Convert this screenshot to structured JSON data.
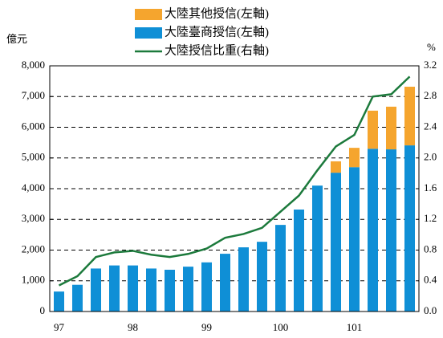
{
  "chart_data": {
    "type": "combo",
    "y_label": "億元",
    "y2_label": "%",
    "categories": [
      "97",
      null,
      null,
      null,
      "98",
      null,
      null,
      null,
      "99",
      null,
      null,
      null,
      "100",
      null,
      null,
      null,
      "101",
      null,
      null,
      null
    ],
    "series": [
      {
        "name": "大陸其他授信(左軸)",
        "type": "bar",
        "color": "#f5a52e",
        "values": [
          null,
          null,
          null,
          null,
          null,
          null,
          null,
          null,
          null,
          null,
          null,
          null,
          null,
          null,
          null,
          370,
          630,
          1240,
          1390,
          1910
        ]
      },
      {
        "name": "大陸臺商授信(左軸)",
        "type": "bar",
        "color": "#0f8fd6",
        "values": [
          650,
          870,
          1400,
          1500,
          1500,
          1400,
          1360,
          1460,
          1600,
          1880,
          2090,
          2270,
          2820,
          3320,
          4100,
          4520,
          4700,
          5300,
          5280,
          5410
        ]
      },
      {
        "name": "大陸授信比重(右軸)",
        "type": "line",
        "axis": "y2",
        "color": "#1c7a3c",
        "values": [
          0.34,
          0.46,
          0.71,
          0.77,
          0.79,
          0.74,
          0.71,
          0.75,
          0.82,
          0.96,
          1.01,
          1.09,
          1.3,
          1.51,
          1.84,
          2.15,
          2.3,
          2.8,
          2.83,
          3.06
        ]
      }
    ],
    "ylim": [
      0,
      8000
    ],
    "yticks": [
      0,
      {
        "value": 1000,
        "label": "1,000"
      },
      {
        "value": 2000,
        "label": "2,000"
      },
      {
        "value": 3000,
        "label": "3,000"
      },
      {
        "value": 4000,
        "label": "4,000"
      },
      {
        "value": 5000,
        "label": "5,000"
      },
      {
        "value": 6000,
        "label": "6,000"
      },
      {
        "value": 7000,
        "label": "7,000"
      },
      {
        "value": 8000,
        "label": "8,000"
      }
    ],
    "y2lim": [
      0,
      3.2
    ],
    "y2ticks": [
      {
        "value": 0,
        "label": "0.0"
      },
      0.4,
      0.8,
      1.2,
      1.6,
      {
        "value": 2,
        "label": "2.0"
      },
      2.4,
      2.8,
      3.2
    ],
    "grid": true
  }
}
